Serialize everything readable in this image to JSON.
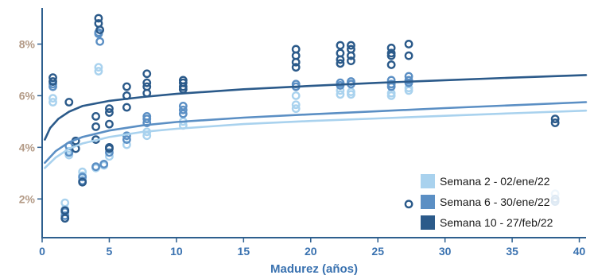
{
  "chart_data": {
    "type": "scatter",
    "xlabel": "Madurez (años)",
    "ylabel": "",
    "xlim": [
      0,
      40.5
    ],
    "ylim": [
      0.5,
      9.4
    ],
    "x_ticks": [
      0,
      5,
      10,
      15,
      20,
      25,
      30,
      35,
      40
    ],
    "y_ticks": [
      {
        "value": 2,
        "label": "2%"
      },
      {
        "value": 4,
        "label": "4%"
      },
      {
        "value": 6,
        "label": "6%"
      },
      {
        "value": 8,
        "label": "8%"
      }
    ],
    "grid": false,
    "legend_position": "bottom-right",
    "colors": {
      "axis": "#2e5f8e",
      "ytick_text": "#b39a86",
      "xtick_text": "#3a72b0"
    },
    "series": [
      {
        "name": "Semana 2 - 02/ene/22",
        "color": "#a9d2ee",
        "points": [
          [
            0.8,
            5.9
          ],
          [
            0.8,
            5.75
          ],
          [
            1.7,
            1.85
          ],
          [
            1.7,
            1.6
          ],
          [
            2,
            3.7
          ],
          [
            2,
            3.85
          ],
          [
            3,
            3.05
          ],
          [
            3,
            2.9
          ],
          [
            4,
            3.2
          ],
          [
            4.2,
            7.1
          ],
          [
            4.2,
            6.95
          ],
          [
            4.6,
            3.3
          ],
          [
            5,
            3.65
          ],
          [
            6.3,
            4.1
          ],
          [
            7.8,
            4.45
          ],
          [
            7.8,
            4.6
          ],
          [
            10.5,
            4.85
          ],
          [
            10.5,
            5.0
          ],
          [
            18.9,
            5.5
          ],
          [
            18.9,
            5.65
          ],
          [
            18.9,
            6.0
          ],
          [
            22.2,
            6.05
          ],
          [
            22.2,
            6.2
          ],
          [
            23,
            6.05
          ],
          [
            23,
            6.15
          ],
          [
            26,
            6.1
          ],
          [
            26,
            6.0
          ],
          [
            27.3,
            6.2
          ],
          [
            27.3,
            6.3
          ],
          [
            38.2,
            2.2
          ],
          [
            38.2,
            1.95
          ]
        ],
        "curve": [
          [
            0.2,
            3.2
          ],
          [
            1,
            3.6
          ],
          [
            2,
            3.95
          ],
          [
            3,
            4.15
          ],
          [
            5,
            4.4
          ],
          [
            7.5,
            4.6
          ],
          [
            10,
            4.72
          ],
          [
            15,
            4.9
          ],
          [
            20,
            5.02
          ],
          [
            25,
            5.12
          ],
          [
            30,
            5.22
          ],
          [
            35,
            5.32
          ],
          [
            40.5,
            5.42
          ]
        ]
      },
      {
        "name": "Semana 6 - 30/ene/22",
        "color": "#5b8fc4",
        "points": [
          [
            0.8,
            6.35
          ],
          [
            0.8,
            6.45
          ],
          [
            1.7,
            1.35
          ],
          [
            1.7,
            1.5
          ],
          [
            2,
            3.8
          ],
          [
            2,
            4.05
          ],
          [
            3,
            2.7
          ],
          [
            3,
            2.85
          ],
          [
            4,
            3.25
          ],
          [
            4.2,
            8.4
          ],
          [
            4.2,
            8.45
          ],
          [
            4.3,
            8.1
          ],
          [
            4.6,
            3.35
          ],
          [
            5,
            3.8
          ],
          [
            6.3,
            4.3
          ],
          [
            6.3,
            4.45
          ],
          [
            7.8,
            4.95
          ],
          [
            7.8,
            5.1
          ],
          [
            7.8,
            5.2
          ],
          [
            10.5,
            5.3
          ],
          [
            10.5,
            5.45
          ],
          [
            10.5,
            5.6
          ],
          [
            18.9,
            6.35
          ],
          [
            18.9,
            6.45
          ],
          [
            22.2,
            6.4
          ],
          [
            22.2,
            6.5
          ],
          [
            23,
            6.45
          ],
          [
            23,
            6.55
          ],
          [
            26,
            6.35
          ],
          [
            26,
            6.45
          ],
          [
            26,
            6.6
          ],
          [
            27.3,
            6.5
          ],
          [
            27.3,
            6.6
          ],
          [
            27.3,
            6.75
          ],
          [
            38.2,
            1.9
          ],
          [
            38.2,
            2.0
          ]
        ],
        "curve": [
          [
            0.2,
            3.4
          ],
          [
            1,
            3.85
          ],
          [
            2,
            4.2
          ],
          [
            3,
            4.4
          ],
          [
            5,
            4.65
          ],
          [
            7.5,
            4.85
          ],
          [
            10,
            4.98
          ],
          [
            15,
            5.15
          ],
          [
            20,
            5.28
          ],
          [
            25,
            5.4
          ],
          [
            30,
            5.52
          ],
          [
            35,
            5.63
          ],
          [
            40.5,
            5.75
          ]
        ]
      },
      {
        "name": "Semana 10 - 27/feb/22",
        "color": "#2b5a8a",
        "points": [
          [
            0.8,
            6.7
          ],
          [
            0.8,
            6.55
          ],
          [
            1.7,
            1.25
          ],
          [
            1.7,
            1.55
          ],
          [
            2,
            5.75
          ],
          [
            2.5,
            4.25
          ],
          [
            2.5,
            3.95
          ],
          [
            3,
            2.65
          ],
          [
            4,
            5.2
          ],
          [
            4,
            4.8
          ],
          [
            4,
            4.3
          ],
          [
            4.2,
            9.0
          ],
          [
            4.2,
            8.8
          ],
          [
            4.3,
            8.55
          ],
          [
            5,
            5.5
          ],
          [
            5,
            5.35
          ],
          [
            5,
            4.9
          ],
          [
            5,
            4.0
          ],
          [
            5,
            3.95
          ],
          [
            6.3,
            6.35
          ],
          [
            6.3,
            6.0
          ],
          [
            6.3,
            5.55
          ],
          [
            7.8,
            6.85
          ],
          [
            7.8,
            6.5
          ],
          [
            7.8,
            6.35
          ],
          [
            7.8,
            6.1
          ],
          [
            10.5,
            6.6
          ],
          [
            10.5,
            6.5
          ],
          [
            10.5,
            6.35
          ],
          [
            10.5,
            6.25
          ],
          [
            18.9,
            7.8
          ],
          [
            18.9,
            7.55
          ],
          [
            18.9,
            7.3
          ],
          [
            18.9,
            7.1
          ],
          [
            22.2,
            7.95
          ],
          [
            22.2,
            7.65
          ],
          [
            22.2,
            7.4
          ],
          [
            22.2,
            7.25
          ],
          [
            23,
            7.95
          ],
          [
            23,
            7.8
          ],
          [
            23,
            7.55
          ],
          [
            23,
            7.35
          ],
          [
            26,
            7.85
          ],
          [
            26,
            7.65
          ],
          [
            26,
            7.55
          ],
          [
            26,
            7.2
          ],
          [
            27.3,
            8.0
          ],
          [
            27.3,
            7.55
          ],
          [
            27.3,
            1.8
          ],
          [
            38.2,
            5.1
          ],
          [
            38.2,
            4.95
          ]
        ],
        "curve": [
          [
            0.2,
            4.3
          ],
          [
            0.6,
            4.75
          ],
          [
            1.2,
            5.1
          ],
          [
            2,
            5.38
          ],
          [
            3,
            5.6
          ],
          [
            5,
            5.8
          ],
          [
            7.5,
            5.95
          ],
          [
            10,
            6.07
          ],
          [
            15,
            6.25
          ],
          [
            20,
            6.38
          ],
          [
            25,
            6.5
          ],
          [
            30,
            6.6
          ],
          [
            35,
            6.7
          ],
          [
            40.5,
            6.8
          ]
        ]
      }
    ]
  }
}
